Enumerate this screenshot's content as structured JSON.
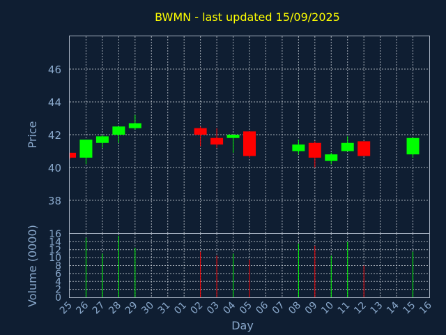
{
  "chart_data": {
    "type": "candlestick",
    "title": "BWMN - last updated 15/09/2025",
    "xlabel": "Day",
    "ylabel": "Price",
    "volume_label": "Volume (0000)",
    "x_ticks": [
      "25",
      "26",
      "27",
      "28",
      "29",
      "30",
      "31",
      "01",
      "02",
      "03",
      "04",
      "05",
      "06",
      "07",
      "08",
      "09",
      "10",
      "11",
      "12",
      "13",
      "14",
      "15",
      "16"
    ],
    "price_ylim": [
      36,
      48
    ],
    "price_ticks": [
      38,
      40,
      42,
      44,
      46
    ],
    "volume_ylim": [
      0,
      16
    ],
    "volume_ticks": [
      0,
      2,
      4,
      6,
      8,
      10,
      12,
      14,
      16
    ],
    "grid": true,
    "colors": {
      "up": "#00ff00",
      "down": "#ff0000",
      "background": "#0f1e32",
      "title": "#ffff00",
      "axis_text": "#8aa9cc"
    },
    "candles": [
      {
        "day": "25",
        "open": 40.9,
        "high": 40.9,
        "low": 40.5,
        "close": 40.6,
        "volume": 0
      },
      {
        "day": "26",
        "open": 40.6,
        "high": 41.7,
        "low": 40.2,
        "close": 41.7,
        "volume": 15
      },
      {
        "day": "27",
        "open": 41.5,
        "high": 42.0,
        "low": 41.2,
        "close": 41.9,
        "volume": 11
      },
      {
        "day": "28",
        "open": 42.0,
        "high": 42.5,
        "low": 41.5,
        "close": 42.5,
        "volume": 15.5
      },
      {
        "day": "29",
        "open": 42.4,
        "high": 43.2,
        "low": 42.3,
        "close": 42.7,
        "volume": 12.5
      },
      {
        "day": "02",
        "open": 42.4,
        "high": 42.5,
        "low": 41.3,
        "close": 42.0,
        "volume": 11.5
      },
      {
        "day": "03",
        "open": 41.8,
        "high": 42.4,
        "low": 41.2,
        "close": 41.4,
        "volume": 10.5
      },
      {
        "day": "04",
        "open": 41.8,
        "high": 42.0,
        "low": 40.9,
        "close": 42.0,
        "volume": 11
      },
      {
        "day": "05",
        "open": 42.2,
        "high": 42.2,
        "low": 40.6,
        "close": 40.7,
        "volume": 9.5
      },
      {
        "day": "08",
        "open": 41.0,
        "high": 41.7,
        "low": 40.8,
        "close": 41.4,
        "volume": 13.5
      },
      {
        "day": "09",
        "open": 41.5,
        "high": 41.6,
        "low": 40.0,
        "close": 40.6,
        "volume": 13
      },
      {
        "day": "10",
        "open": 40.4,
        "high": 40.9,
        "low": 40.2,
        "close": 40.8,
        "volume": 10.5
      },
      {
        "day": "11",
        "open": 41.0,
        "high": 41.9,
        "low": 41.0,
        "close": 41.5,
        "volume": 14
      },
      {
        "day": "12",
        "open": 41.6,
        "high": 41.6,
        "low": 40.7,
        "close": 40.7,
        "volume": 8
      },
      {
        "day": "15",
        "open": 40.8,
        "high": 41.8,
        "low": 40.6,
        "close": 41.8,
        "volume": 11.5
      }
    ]
  }
}
